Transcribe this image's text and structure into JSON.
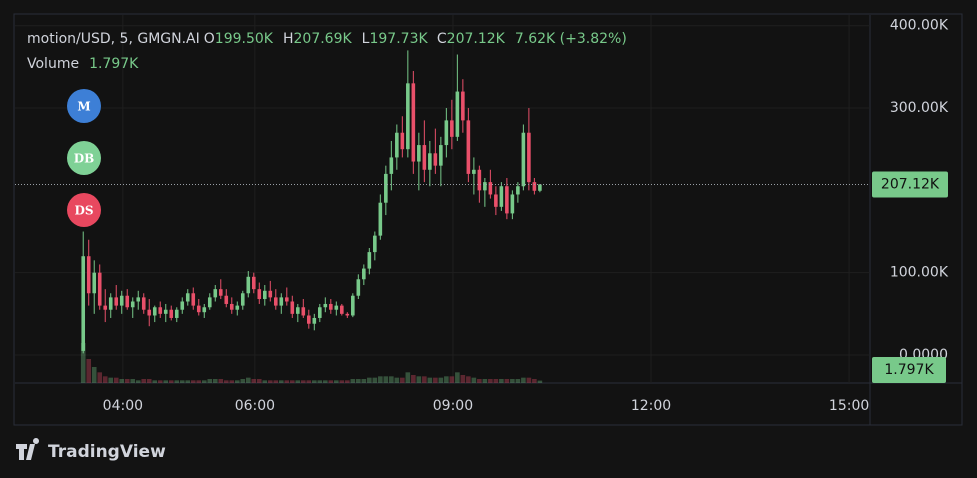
{
  "chart_data": {
    "type": "candlestick",
    "title": "motion/USD, 5, GMGN.AI",
    "ohlc": [
      {
        "label": "O",
        "value": "199.50K"
      },
      {
        "label": "H",
        "value": "207.69K"
      },
      {
        "label": "L",
        "value": "197.73K"
      },
      {
        "label": "C",
        "value": "207.12K"
      }
    ],
    "change": "7.62K (+3.82%)",
    "volume_title": "Volume",
    "volume_readout": "1.797K",
    "last_price": {
      "value": 207.12,
      "label": "207.12K"
    },
    "up_color": "#78c98a",
    "down_color": "#e9506a",
    "markers": [
      {
        "label": "M",
        "color": "#3d7fd6"
      },
      {
        "label": "DB",
        "color": "#7fd196"
      },
      {
        "label": "DS",
        "color": "#e8485f"
      }
    ],
    "brand": "TradingView",
    "xlim": [
      142,
      919
    ],
    "xticks": [
      {
        "value": 240,
        "label": "04:00"
      },
      {
        "value": 360,
        "label": "06:00"
      },
      {
        "value": 540,
        "label": "09:00"
      },
      {
        "value": 720,
        "label": "12:00"
      },
      {
        "value": 900,
        "label": "15:00"
      }
    ],
    "ylim": [
      -34,
      413
    ],
    "yticks": [
      {
        "value": 0,
        "label": "0.0000"
      },
      {
        "value": 100,
        "label": "100.00K"
      },
      {
        "value": 300,
        "label": "300.00K"
      },
      {
        "value": 400,
        "label": "400.00K"
      }
    ],
    "grid": true,
    "x": [
      204,
      209,
      214,
      219,
      224,
      229,
      234,
      239,
      244,
      249,
      254,
      259,
      264,
      269,
      274,
      279,
      284,
      289,
      294,
      299,
      304,
      309,
      314,
      319,
      324,
      329,
      334,
      339,
      344,
      349,
      354,
      359,
      364,
      369,
      374,
      379,
      384,
      389,
      394,
      399,
      404,
      409,
      414,
      419,
      424,
      429,
      434,
      439,
      444,
      449,
      454,
      459,
      464,
      469,
      474,
      479,
      484,
      489,
      494,
      499,
      504,
      509,
      514,
      519,
      524,
      529,
      534,
      539,
      544,
      549,
      554,
      559,
      564,
      569,
      574,
      579,
      584,
      589,
      594,
      599,
      604,
      609,
      614,
      619
    ],
    "open": [
      5,
      120,
      75,
      100,
      60,
      55,
      70,
      60,
      72,
      58,
      65,
      70,
      55,
      48,
      58,
      50,
      55,
      45,
      55,
      65,
      75,
      60,
      52,
      58,
      70,
      80,
      72,
      62,
      55,
      60,
      75,
      95,
      80,
      68,
      78,
      70,
      60,
      70,
      65,
      50,
      58,
      48,
      38,
      45,
      58,
      62,
      55,
      60,
      50,
      48,
      72,
      92,
      105,
      125,
      145,
      185,
      220,
      240,
      270,
      250,
      330,
      235,
      255,
      225,
      245,
      230,
      255,
      285,
      265,
      320,
      285,
      220,
      225,
      200,
      210,
      195,
      180,
      205,
      172,
      195,
      205,
      270,
      210,
      199.5
    ],
    "high": [
      150,
      140,
      115,
      110,
      80,
      75,
      85,
      78,
      80,
      70,
      78,
      75,
      68,
      60,
      65,
      62,
      60,
      58,
      70,
      80,
      82,
      68,
      62,
      75,
      85,
      92,
      80,
      70,
      65,
      78,
      102,
      100,
      88,
      85,
      90,
      80,
      75,
      82,
      72,
      62,
      68,
      55,
      50,
      62,
      70,
      68,
      65,
      62,
      52,
      75,
      98,
      110,
      130,
      150,
      195,
      230,
      260,
      280,
      290,
      370,
      345,
      270,
      285,
      260,
      275,
      265,
      300,
      310,
      365,
      335,
      300,
      240,
      230,
      215,
      225,
      205,
      210,
      215,
      200,
      210,
      280,
      300,
      215,
      207.69
    ],
    "low": [
      2,
      60,
      50,
      55,
      40,
      45,
      55,
      50,
      55,
      45,
      55,
      50,
      35,
      40,
      45,
      40,
      42,
      40,
      50,
      60,
      55,
      48,
      45,
      55,
      65,
      68,
      58,
      50,
      48,
      55,
      70,
      75,
      62,
      60,
      65,
      55,
      50,
      60,
      45,
      40,
      45,
      32,
      30,
      40,
      52,
      50,
      48,
      48,
      45,
      46,
      68,
      85,
      98,
      115,
      140,
      170,
      200,
      225,
      240,
      240,
      220,
      200,
      210,
      205,
      220,
      205,
      240,
      250,
      260,
      270,
      210,
      195,
      185,
      180,
      190,
      170,
      175,
      165,
      165,
      185,
      200,
      200,
      195,
      197.73
    ],
    "close": [
      120,
      75,
      100,
      60,
      55,
      70,
      60,
      72,
      58,
      65,
      70,
      55,
      48,
      58,
      50,
      55,
      45,
      55,
      65,
      75,
      60,
      52,
      58,
      70,
      80,
      72,
      62,
      55,
      60,
      75,
      95,
      80,
      68,
      78,
      70,
      60,
      70,
      65,
      50,
      58,
      48,
      38,
      45,
      58,
      62,
      55,
      60,
      50,
      48,
      72,
      92,
      105,
      125,
      145,
      185,
      220,
      240,
      270,
      250,
      330,
      235,
      255,
      225,
      245,
      230,
      255,
      285,
      265,
      320,
      285,
      220,
      225,
      200,
      210,
      195,
      180,
      205,
      172,
      195,
      205,
      270,
      210,
      199.5,
      207.12
    ],
    "volume": [
      30,
      18,
      12,
      8,
      5,
      4,
      4,
      3,
      3,
      3,
      2,
      3,
      3,
      2,
      2,
      2,
      2,
      2,
      2,
      2,
      2,
      2,
      2,
      3,
      3,
      3,
      2,
      2,
      2,
      3,
      4,
      3,
      3,
      2,
      2,
      2,
      2,
      2,
      2,
      2,
      2,
      2,
      2,
      2,
      2,
      2,
      2,
      2,
      2,
      3,
      3,
      3,
      4,
      4,
      5,
      5,
      5,
      4,
      4,
      8,
      6,
      5,
      5,
      4,
      4,
      4,
      5,
      5,
      8,
      6,
      5,
      4,
      3,
      3,
      3,
      3,
      3,
      3,
      3,
      3,
      4,
      4,
      3,
      1.797
    ]
  }
}
